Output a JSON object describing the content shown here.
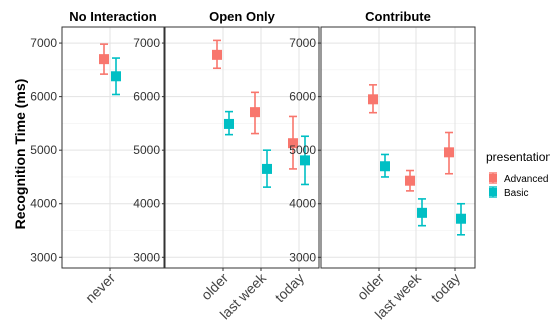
{
  "chart_data": {
    "type": "scatter",
    "ylabel": "Recognition Time (ms)",
    "xlabel": "",
    "ylim": [
      2800,
      7300
    ],
    "yticks": [
      3000,
      4000,
      5000,
      6000,
      7000
    ],
    "grid": true,
    "legend": {
      "title": "presentation",
      "placement": "right",
      "entries": [
        {
          "name": "Advanced",
          "color": "#F8766D"
        },
        {
          "name": "Basic",
          "color": "#00BFC4"
        }
      ]
    },
    "facets": [
      {
        "title": "No Interaction",
        "categories": [
          "never"
        ],
        "series": [
          {
            "name": "Advanced",
            "values": [
              6700
            ],
            "lower": [
              6420
            ],
            "upper": [
              6980
            ]
          },
          {
            "name": "Basic",
            "values": [
              6380
            ],
            "lower": [
              6040
            ],
            "upper": [
              6720
            ]
          }
        ]
      },
      {
        "title": "Open Only",
        "categories": [
          "older",
          "last week",
          "today"
        ],
        "series": [
          {
            "name": "Advanced",
            "values": [
              6780,
              5710,
              5130
            ],
            "lower": [
              6530,
              5310,
              4650
            ],
            "upper": [
              7050,
              6080,
              5630
            ]
          },
          {
            "name": "Basic",
            "values": [
              5490,
              4650,
              4810
            ],
            "lower": [
              5290,
              4310,
              4360
            ],
            "upper": [
              5720,
              5000,
              5260
            ]
          }
        ]
      },
      {
        "title": "Contribute",
        "categories": [
          "older",
          "last week",
          "today"
        ],
        "series": [
          {
            "name": "Advanced",
            "values": [
              5950,
              4430,
              4960
            ],
            "lower": [
              5700,
              4240,
              4560
            ],
            "upper": [
              6220,
              4620,
              5330
            ]
          },
          {
            "name": "Basic",
            "values": [
              4700,
              3830,
              3720
            ],
            "lower": [
              4500,
              3590,
              3420
            ],
            "upper": [
              4920,
              4090,
              4000
            ]
          }
        ]
      }
    ]
  }
}
